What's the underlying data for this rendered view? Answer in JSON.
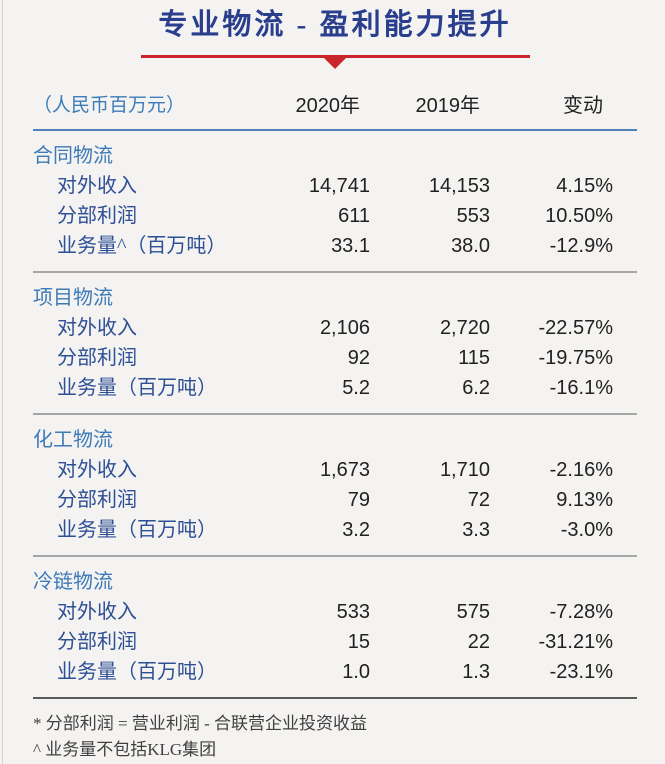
{
  "title": "专业物流 - 盈利能力提升",
  "colors": {
    "title_blue": "#293e8c",
    "accent_red": "#c9252b",
    "header_line_blue": "#4f81bd",
    "section_title_blue": "#3d7ab8",
    "row_label_blue": "#2d4f95",
    "background": "#f4f3f1"
  },
  "table": {
    "unit_label": "（人民币百万元）",
    "columns": {
      "y2020": "2020年",
      "y2019": "2019年",
      "change": "变动"
    },
    "sections": [
      {
        "name": "合同物流",
        "rows": [
          {
            "label": "对外收入",
            "v2020": "14,741",
            "v2019": "14,153",
            "change": "4.15%"
          },
          {
            "label": "分部利润",
            "v2020": "611",
            "v2019": "553",
            "change": "10.50%"
          },
          {
            "label": "业务量^（百万吨）",
            "v2020": "33.1",
            "v2019": "38.0",
            "change": "-12.9%"
          }
        ]
      },
      {
        "name": "项目物流",
        "rows": [
          {
            "label": "对外收入",
            "v2020": "2,106",
            "v2019": "2,720",
            "change": "-22.57%"
          },
          {
            "label": "分部利润",
            "v2020": "92",
            "v2019": "115",
            "change": "-19.75%"
          },
          {
            "label": "业务量（百万吨）",
            "v2020": "5.2",
            "v2019": "6.2",
            "change": "-16.1%"
          }
        ]
      },
      {
        "name": "化工物流",
        "rows": [
          {
            "label": "对外收入",
            "v2020": "1,673",
            "v2019": "1,710",
            "change": "-2.16%"
          },
          {
            "label": "分部利润",
            "v2020": "79",
            "v2019": "72",
            "change": "9.13%"
          },
          {
            "label": "业务量（百万吨）",
            "v2020": "3.2",
            "v2019": "3.3",
            "change": "-3.0%"
          }
        ]
      },
      {
        "name": "冷链物流",
        "rows": [
          {
            "label": "对外收入",
            "v2020": "533",
            "v2019": "575",
            "change": "-7.28%"
          },
          {
            "label": "分部利润",
            "v2020": "15",
            "v2019": "22",
            "change": "-31.21%"
          },
          {
            "label": "业务量（百万吨）",
            "v2020": "1.0",
            "v2019": "1.3",
            "change": "-23.1%"
          }
        ]
      }
    ]
  },
  "footnotes": [
    "* 分部利润 = 营业利润 - 合联营企业投资收益",
    "^ 业务量不包括KLG集团"
  ]
}
